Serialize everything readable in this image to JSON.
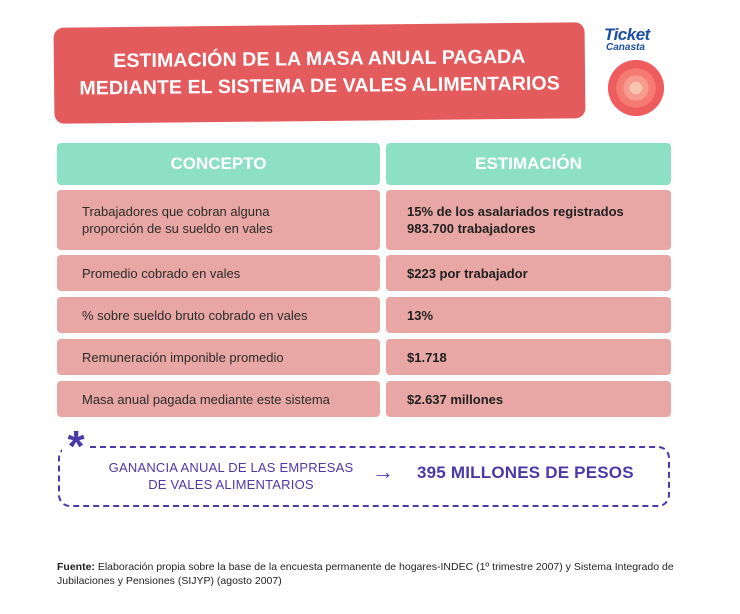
{
  "title": {
    "line1": "ESTIMACIÓN DE LA MASA ANUAL PAGADA",
    "line2": "MEDIANTE EL SISTEMA DE VALES ALIMENTARIOS"
  },
  "logo": {
    "line1": "Ticket",
    "line2": "Canasta"
  },
  "table": {
    "headers": [
      "CONCEPTO",
      "ESTIMACIÓN"
    ],
    "rows": [
      {
        "concept_line1": "Trabajadores que cobran alguna",
        "concept_line2": "proporción de su sueldo en vales",
        "value_line1": "15% de los asalariados registrados",
        "value_line2": "983.700 trabajadores"
      },
      {
        "concept_line1": "Promedio cobrado en vales",
        "value_line1": "$223 por trabajador"
      },
      {
        "concept_line1": "% sobre sueldo bruto cobrado en vales",
        "value_line1": "13%"
      },
      {
        "concept_line1": "Remuneración imponible promedio",
        "value_line1": "$1.718"
      },
      {
        "concept_line1": "Masa anual pagada mediante este sistema",
        "value_line1": "$2.637 millones"
      }
    ]
  },
  "highlight": {
    "asterisk": "*",
    "label_line1": "GANANCIA ANUAL DE LAS EMPRESAS",
    "label_line2": "DE VALES ALIMENTARIOS",
    "arrow": "→",
    "value": "395 MILLONES DE PESOS"
  },
  "footer": {
    "source_label": "Fuente:",
    "source_line1": " Elaboración propia sobre la base de la encuesta permanente de hogares-INDEC (1º trimestre 2007) y Sistema Integrado de",
    "source_line2": "Jubilaciones y Pensiones (SIJYP) (agosto 2007)"
  },
  "colors": {
    "title_bg": "#e45b5e",
    "header_bg": "#8ee0c4",
    "row_bg": "#e8a7a4",
    "accent": "#4a3aa8",
    "logo": "#1b4fa6"
  }
}
